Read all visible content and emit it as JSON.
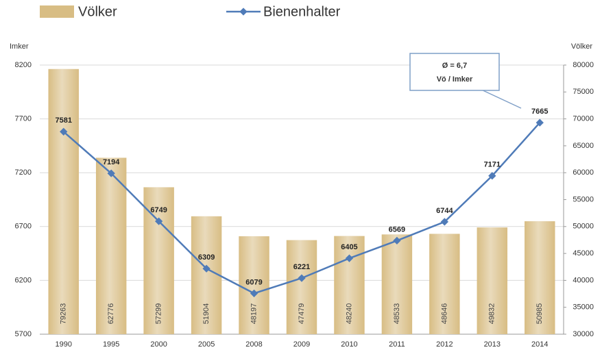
{
  "chart_data": {
    "type": "bar-line",
    "categories": [
      "1990",
      "1995",
      "2000",
      "2005",
      "2008",
      "2009",
      "2010",
      "2011",
      "2012",
      "2013",
      "2014"
    ],
    "series": [
      {
        "name": "Völker",
        "type": "bar",
        "axis": "y2",
        "color": "#d8bd84",
        "values": [
          79263,
          62776,
          57299,
          51904,
          48197,
          47479,
          48240,
          48533,
          48646,
          49832,
          50985
        ]
      },
      {
        "name": "Bienenhalter",
        "type": "line",
        "axis": "y",
        "color": "#4f7bb8",
        "values": [
          7581,
          7194,
          6749,
          6309,
          6079,
          6221,
          6405,
          6569,
          6744,
          7171,
          7665
        ]
      }
    ],
    "ylabel": "Imker",
    "y2label": "Völker",
    "ylim": [
      5700,
      8200
    ],
    "yticks": [
      5700,
      6200,
      6700,
      7200,
      7700,
      8200
    ],
    "y2lim": [
      30000,
      80000
    ],
    "y2ticks": [
      30000,
      35000,
      40000,
      45000,
      50000,
      55000,
      60000,
      65000,
      70000,
      75000,
      80000
    ],
    "annotation": {
      "line1": "Ø = 6,7",
      "line2": "Vö / Imker"
    },
    "grid": true,
    "legend": "top"
  }
}
